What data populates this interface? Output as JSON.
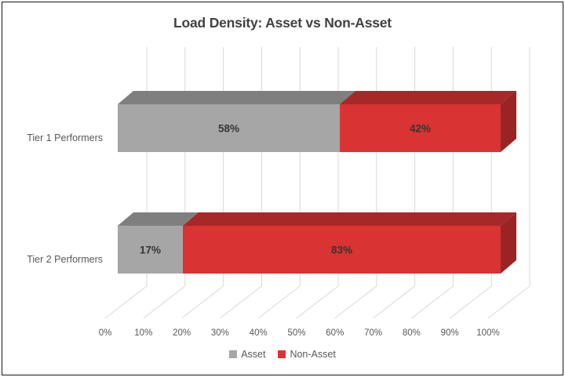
{
  "chart_data": {
    "type": "bar",
    "variant": "3d-horizontal-stacked",
    "title": "Load Density: Asset vs Non-Asset",
    "categories": [
      "Tier 1 Performers",
      "Tier 2 Performers"
    ],
    "series": [
      {
        "name": "Asset",
        "values": [
          58,
          17
        ],
        "labels": [
          "58%",
          "17%"
        ],
        "color": "#A6A6A6",
        "color_top": "#7F7F7F",
        "color_side": "#757575"
      },
      {
        "name": "Non-Asset",
        "values": [
          42,
          83
        ],
        "labels": [
          "42%",
          "83%"
        ],
        "color": "#D93333",
        "color_top": "#A62828",
        "color_side": "#9A2424"
      }
    ],
    "x_ticks": [
      "0%",
      "10%",
      "20%",
      "30%",
      "40%",
      "50%",
      "60%",
      "70%",
      "80%",
      "90%",
      "100%"
    ],
    "xlim": [
      0,
      100
    ],
    "grid": true,
    "gridline_color": "#D9D9D9",
    "legend_position": "bottom",
    "text_colors": {
      "title": "#414141",
      "axis": "#595959",
      "data_label": "#363636"
    }
  }
}
